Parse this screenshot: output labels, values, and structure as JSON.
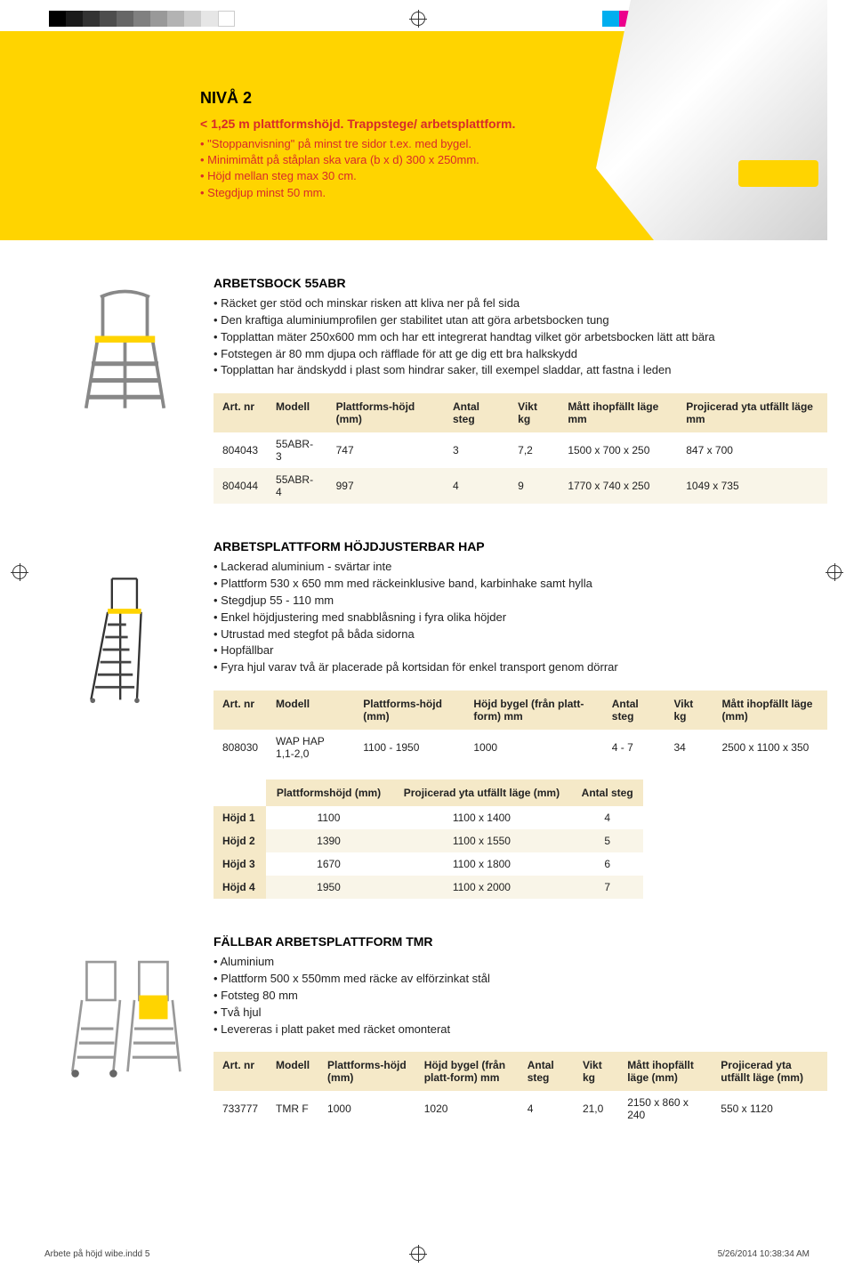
{
  "print_marks": {
    "gray_shades": [
      "#000000",
      "#1a1a1a",
      "#333333",
      "#4d4d4d",
      "#666666",
      "#808080",
      "#999999",
      "#b3b3b3",
      "#cccccc",
      "#e6e6e6",
      "#ffffff"
    ],
    "color_bars": [
      "#00aeef",
      "#ec008c",
      "#fff200",
      "#ed1c24",
      "#00a651",
      "#2e3192",
      "#ed1c24",
      "#000000",
      "#fff200",
      "#f7bcd8",
      "#8ed8f8",
      "#acacac"
    ]
  },
  "hero": {
    "title": "NIVÅ 2",
    "subtitle": "< 1,25 m plattformshöjd. Trappstege/ arbetsplattform.",
    "bullets": [
      "\"Stoppanvisning\" på minst tre sidor t.ex. med bygel.",
      "Minimimått på ståplan ska vara (b x d) 300 x 250mm.",
      "Höjd mellan steg max 30 cm.",
      "Stegdjup minst 50 mm."
    ]
  },
  "product1": {
    "title": "ARBETSBOCK 55ABR",
    "bullets": [
      "Räcket ger stöd och minskar risken att kliva ner på fel sida",
      "Den kraftiga aluminiumprofilen ger stabilitet utan att göra arbetsbocken tung",
      "Topplattan mäter 250x600 mm och har ett integrerat handtag vilket gör arbetsbocken lätt att bära",
      "Fotstegen är 80 mm djupa och räfflade för att ge dig ett bra halkskydd",
      "Topplattan har ändskydd i plast som hindrar saker, till exempel sladdar, att fastna i leden"
    ],
    "headers": [
      "Art. nr",
      "Modell",
      "Plattforms-höjd (mm)",
      "Antal steg",
      "Vikt kg",
      "Mått ihopfällt läge mm",
      "Projicerad yta utfällt läge mm"
    ],
    "rows": [
      [
        "804043",
        "55ABR-3",
        "747",
        "3",
        "7,2",
        "1500 x 700 x 250",
        "847 x 700"
      ],
      [
        "804044",
        "55ABR-4",
        "997",
        "4",
        "9",
        "1770 x 740 x 250",
        "1049 x 735"
      ]
    ]
  },
  "product2": {
    "title": "ARBETSPLATTFORM HÖJDJUSTERBAR HAP",
    "bullets": [
      "Lackerad aluminium - svärtar inte",
      "Plattform 530 x 650 mm med räckeinklusive band, karbinhake samt hylla",
      "Stegdjup 55 - 110 mm",
      "Enkel höjdjustering med snabblåsning i fyra olika höjder",
      "Utrustad med stegfot på båda sidorna",
      "Hopfällbar",
      "Fyra hjul varav två är placerade på kortsidan för enkel transport genom dörrar"
    ],
    "headers": [
      "Art. nr",
      "Modell",
      "Plattforms-höjd (mm)",
      "Höjd bygel (från platt-form) mm",
      "Antal steg",
      "Vikt kg",
      "Mått ihopfällt läge (mm)"
    ],
    "rows": [
      [
        "808030",
        "WAP HAP 1,1-2,0",
        "1100 - 1950",
        "1000",
        "4 - 7",
        "34",
        "2500 x 1100 x 350"
      ]
    ],
    "headers2": [
      "",
      "Plattformshöjd (mm)",
      "Projicerad yta utfällt läge (mm)",
      "Antal steg"
    ],
    "rows2": [
      [
        "Höjd 1",
        "1100",
        "1100 x 1400",
        "4"
      ],
      [
        "Höjd 2",
        "1390",
        "1100 x 1550",
        "5"
      ],
      [
        "Höjd 3",
        "1670",
        "1100 x 1800",
        "6"
      ],
      [
        "Höjd 4",
        "1950",
        "1100 x 2000",
        "7"
      ]
    ]
  },
  "product3": {
    "title": "FÄLLBAR ARBETSPLATTFORM TMR",
    "bullets": [
      "Aluminium",
      "Plattform 500 x 550mm med räcke av elförzinkat stål",
      "Fotsteg 80 mm",
      "Två hjul",
      "Levereras i platt paket med räcket omonterat"
    ],
    "headers": [
      "Art. nr",
      "Modell",
      "Plattforms-höjd (mm)",
      "Höjd bygel (från platt-form) mm",
      "Antal steg",
      "Vikt kg",
      "Mått ihopfällt läge (mm)",
      "Projicerad yta utfällt läge (mm)"
    ],
    "rows": [
      [
        "733777",
        "TMR F",
        "1000",
        "1020",
        "4",
        "21,0",
        "2150 x 860 x 240",
        "550 x 1120"
      ]
    ]
  },
  "footer": {
    "left": "Arbete på höjd wibe.indd   5",
    "right": "5/26/2014   10:38:34 AM"
  }
}
